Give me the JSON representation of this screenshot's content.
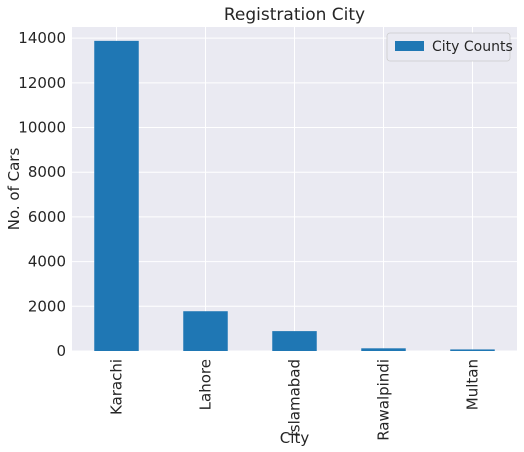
{
  "chart_data": {
    "type": "bar",
    "title": "Registration City",
    "xlabel": "City",
    "ylabel": "No. of Cars",
    "categories": [
      "Karachi",
      "Lahore",
      "Islamabad",
      "Rawalpindi",
      "Multan"
    ],
    "series": [
      {
        "name": "City Counts",
        "values": [
          13880,
          1780,
          890,
          120,
          70
        ]
      }
    ],
    "ylim": [
      0,
      14500
    ],
    "yticks": [
      "0",
      "2000",
      "4000",
      "6000",
      "8000",
      "10000",
      "12000",
      "14000"
    ],
    "ytick_values": [
      0,
      2000,
      4000,
      6000,
      8000,
      10000,
      12000,
      14000
    ],
    "grid": true,
    "legend": "top-right",
    "colors": {
      "bar": "#1f77b4",
      "plot_background": "#eaeaf2",
      "grid": "#ffffff"
    }
  }
}
